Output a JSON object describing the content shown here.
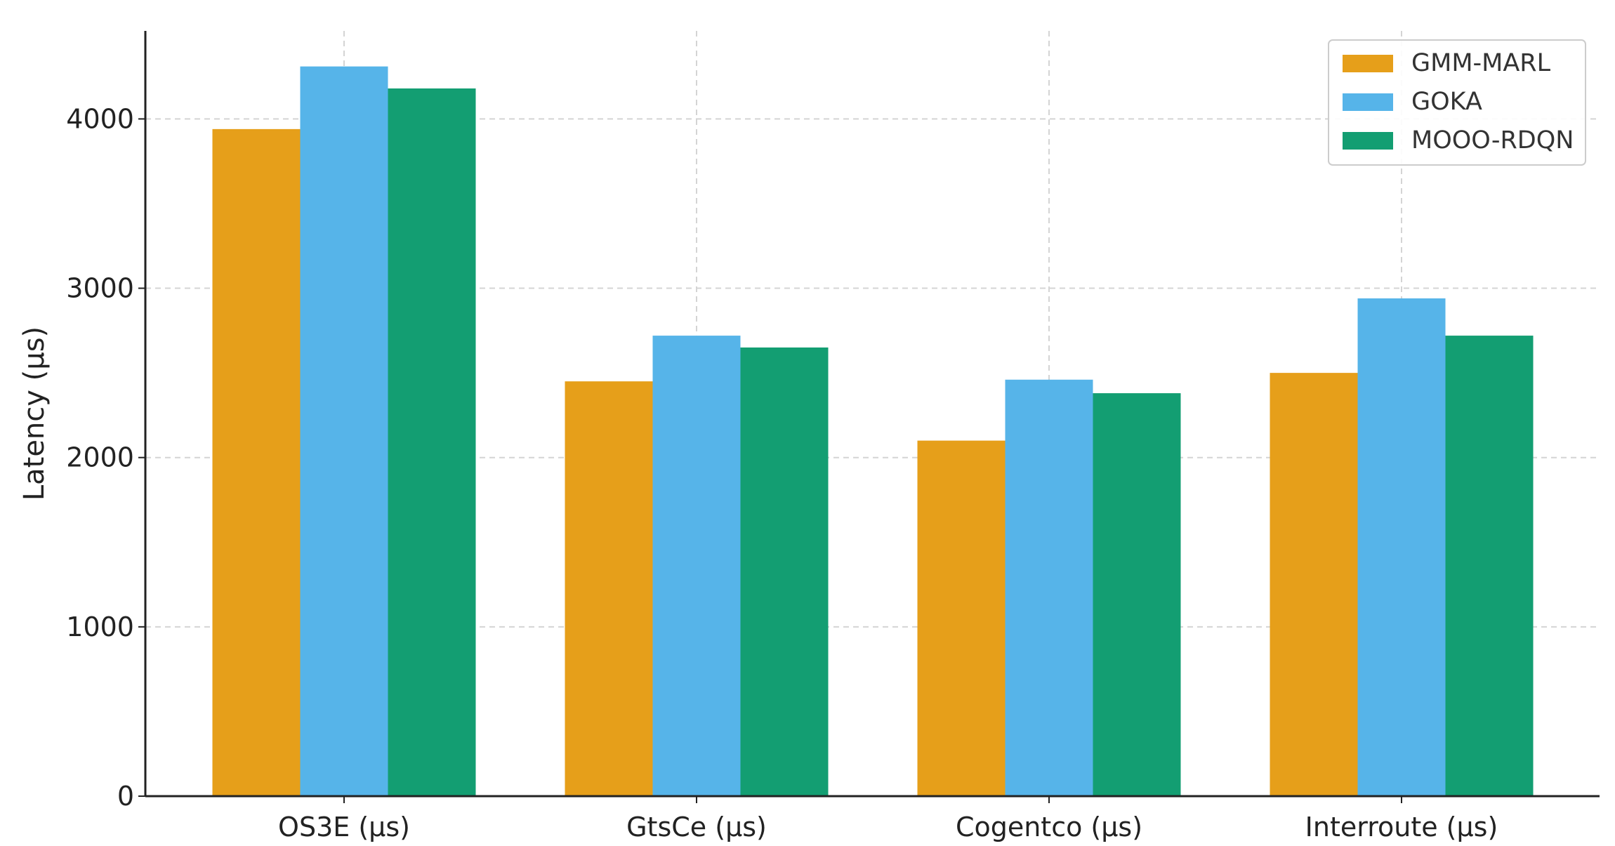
{
  "chart_data": {
    "type": "bar",
    "title": "",
    "xlabel": "",
    "ylabel": "Latency (µs)",
    "categories": [
      "OS3E (µs)",
      "GtsCe (µs)",
      "Cogentco (µs)",
      "Interroute (µs)"
    ],
    "series": [
      {
        "name": "GMM-MARL",
        "color": "#E69F1A",
        "values": [
          3940,
          2450,
          2100,
          2500
        ]
      },
      {
        "name": "GOKA",
        "color": "#56B4E9",
        "values": [
          4310,
          2720,
          2460,
          2940
        ]
      },
      {
        "name": "MOOO-RDQN",
        "color": "#139E72",
        "values": [
          4180,
          2650,
          2380,
          2720
        ]
      }
    ],
    "ylim": [
      0,
      4520
    ],
    "yticks": [
      0,
      1000,
      2000,
      3000,
      4000
    ],
    "grid": true,
    "legend_position": "top-right"
  }
}
